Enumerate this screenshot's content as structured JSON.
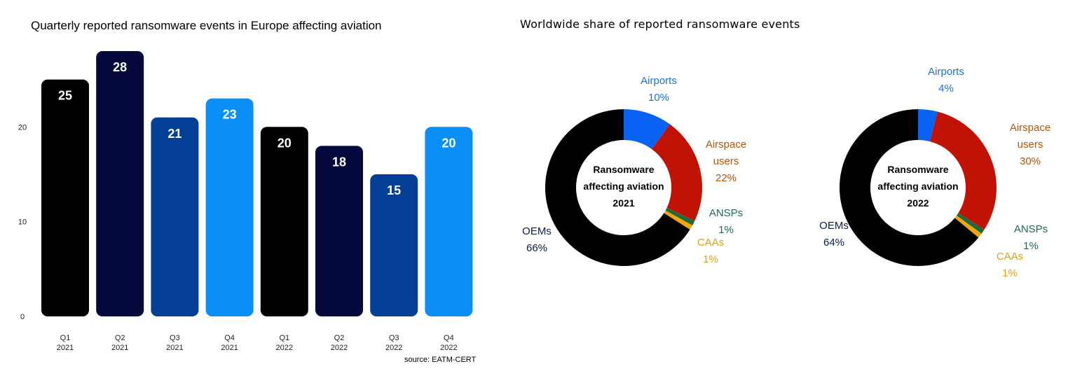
{
  "source": "source: EATM-CERT",
  "chart_data": [
    {
      "type": "bar",
      "title": "Quarterly reported ransomware events in Europe affecting aviation",
      "categories": [
        [
          "Q1",
          "2021"
        ],
        [
          "Q2",
          "2021"
        ],
        [
          "Q3",
          "2021"
        ],
        [
          "Q4",
          "2021"
        ],
        [
          "Q1",
          "2022"
        ],
        [
          "Q2",
          "2022"
        ],
        [
          "Q3",
          "2022"
        ],
        [
          "Q4",
          "2022"
        ]
      ],
      "values": [
        25,
        28,
        21,
        23,
        20,
        18,
        15,
        20
      ],
      "colors": [
        "#000000",
        "#04083a",
        "#033f96",
        "#0a8ff7",
        "#000000",
        "#04083a",
        "#033f96",
        "#0a8ff7"
      ],
      "ylim": [
        0,
        28
      ],
      "yticks": [
        0,
        10,
        20
      ],
      "grid": false,
      "legend": "none"
    },
    {
      "type": "pie",
      "title": "Worldwide share of reported ransomware  events",
      "charts": [
        {
          "center_label": [
            "Ransomware",
            "affecting aviation",
            "2021"
          ],
          "slices": [
            {
              "name": "Airports",
              "value": 10,
              "label": "10%",
              "color": "#0a62f2",
              "text_color": "#1c6fd9"
            },
            {
              "name": "Airspace users",
              "name_lines": [
                "Airspace",
                "users"
              ],
              "value": 22,
              "label": "22%",
              "color": "#c01305",
              "text_color": "#b35409"
            },
            {
              "name": "ANSPs",
              "value": 1,
              "label": "1%",
              "color": "#1d6b3d",
              "text_color": "#1d6b57"
            },
            {
              "name": "CAAs",
              "value": 1,
              "label": "1%",
              "color": "#f2a60c",
              "text_color": "#e0a10a"
            },
            {
              "name": "OEMs",
              "value": 66,
              "label": "66%",
              "color": "#000000",
              "text_color": "#0b1d4a"
            }
          ]
        },
        {
          "center_label": [
            "Ransomware",
            "affecting aviation",
            "2022"
          ],
          "slices": [
            {
              "name": "Airports",
              "value": 4,
              "label": "4%",
              "color": "#0a62f2",
              "text_color": "#1c6fd9"
            },
            {
              "name": "Airspace users",
              "name_lines": [
                "Airspace",
                "users"
              ],
              "value": 30,
              "label": "30%",
              "color": "#c01305",
              "text_color": "#b35409"
            },
            {
              "name": "ANSPs",
              "value": 1,
              "label": "1%",
              "color": "#1d6b3d",
              "text_color": "#1d6b57"
            },
            {
              "name": "CAAs",
              "value": 1,
              "label": "1%",
              "color": "#f2a60c",
              "text_color": "#e0a10a"
            },
            {
              "name": "OEMs",
              "value": 64,
              "label": "64%",
              "color": "#000000",
              "text_color": "#0b1d4a"
            }
          ]
        }
      ]
    }
  ]
}
